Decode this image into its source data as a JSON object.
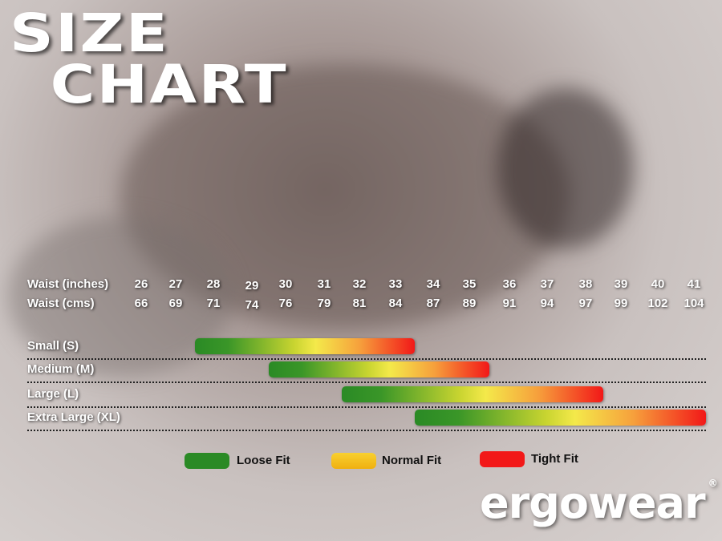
{
  "title": [
    "SIZE",
    "CHART"
  ],
  "chart_data": {
    "type": "range-bar",
    "row_labels": [
      "Waist (inches)",
      "Waist (cms)"
    ],
    "waist_inches": [
      "26",
      "27",
      "28",
      "29",
      "30",
      "31",
      "32",
      "33",
      "34",
      "35",
      "36",
      "37",
      "38",
      "39",
      "40",
      "41"
    ],
    "waist_cms": [
      "66",
      "69",
      "71",
      "74",
      "76",
      "79",
      "81",
      "84",
      "87",
      "89",
      "91",
      "94",
      "97",
      "99",
      "102",
      "104"
    ],
    "sizes": [
      {
        "label": "Small (S)",
        "start_in": 27.5,
        "end_in": 33.5
      },
      {
        "label": "Medium (M)",
        "start_in": 29.5,
        "end_in": 35.5
      },
      {
        "label": "Large (L)",
        "start_in": 31.5,
        "end_in": 38.5
      },
      {
        "label": "Extra Large (XL)",
        "start_in": 33.5,
        "end_in": 41.5
      }
    ],
    "gradient": "green (loose) to yellow (normal) to red (tight)",
    "legend": [
      {
        "label": "Loose Fit",
        "color": "#2a8a25"
      },
      {
        "label": "Normal Fit",
        "color": "#f5c518"
      },
      {
        "label": "Tight Fit",
        "color": "#f21818"
      }
    ]
  },
  "logo": {
    "text": "ergowear",
    "mark": "®"
  }
}
